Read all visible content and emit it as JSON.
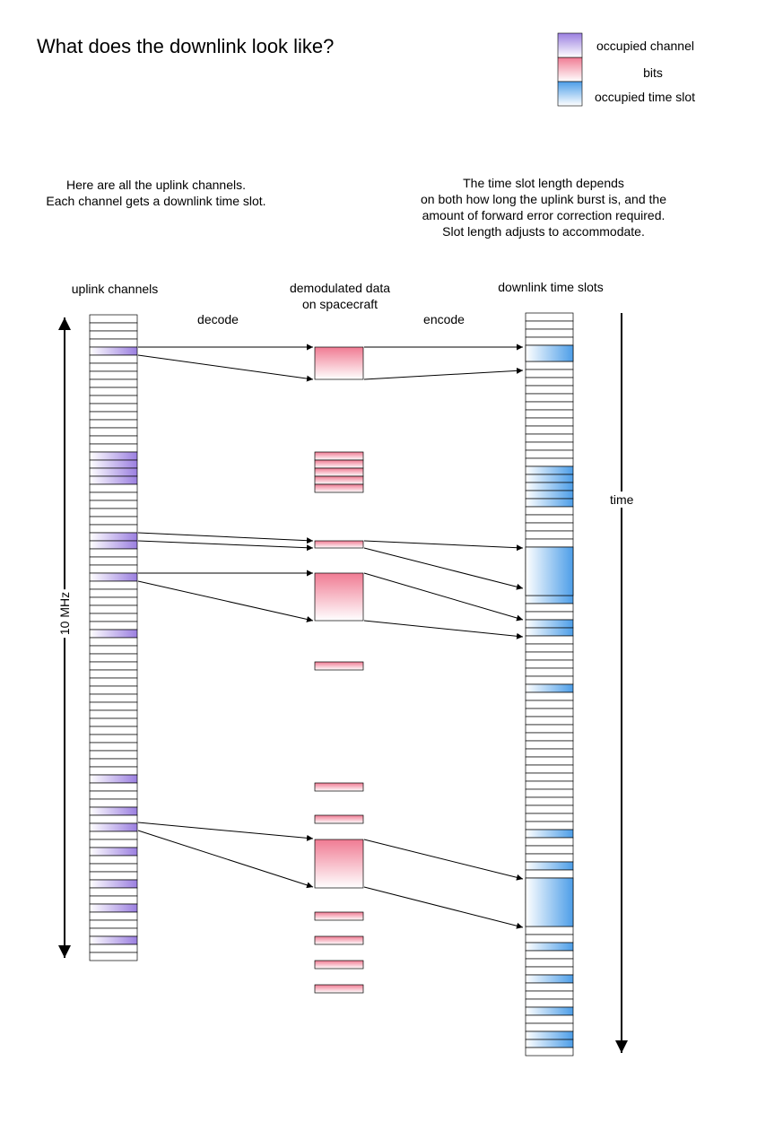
{
  "title": "What does the downlink look like?",
  "legend": {
    "items": [
      {
        "label": "occupied channel",
        "swatch": "purple"
      },
      {
        "label": "bits",
        "swatch": "pink"
      },
      {
        "label": "occupied time slot",
        "swatch": "blue"
      }
    ]
  },
  "notes": {
    "uplink": [
      "Here are all the uplink channels.",
      "Each channel gets a downlink time slot."
    ],
    "timeslot": [
      "The time slot length depends",
      "on both how long the uplink burst is, and the",
      "amount of forward error correction required.",
      "Slot length adjusts to accommodate."
    ]
  },
  "columns": {
    "uplink": "uplink channels",
    "demod": [
      "demodulated data",
      "on spacecraft"
    ],
    "downlink": "downlink time slots"
  },
  "labels": {
    "decode": "decode",
    "encode": "encode",
    "bandwidth": "10 MHz",
    "time": "time"
  },
  "colors": {
    "purple": "#9b7fe0",
    "pink": "#f07b93",
    "blue": "#4d9ee8",
    "border": "#000000"
  },
  "uplink_channels": {
    "count": 80,
    "occupied": [
      4,
      17,
      18,
      19,
      20,
      27,
      28,
      32,
      39,
      57,
      61,
      63,
      66,
      70,
      73,
      77
    ]
  },
  "downlink_slots": {
    "count": 92,
    "occupied": [
      4,
      5,
      19,
      20,
      21,
      22,
      23,
      29,
      30,
      31,
      32,
      33,
      34,
      35,
      38,
      39,
      46,
      64,
      68,
      70,
      71,
      72,
      73,
      74,
      75,
      78,
      82,
      86,
      89,
      90
    ]
  },
  "demod_blocks": [
    {
      "size": 4,
      "group": 1
    },
    {
      "size": 1,
      "group": 6
    },
    {
      "size": 1,
      "group": 1
    },
    {
      "size": 6,
      "group": 1
    },
    {
      "size": 1,
      "group": 1
    },
    {
      "size": 1,
      "group": 1
    },
    {
      "size": 1,
      "group": 1
    },
    {
      "size": 6,
      "group": 1
    },
    {
      "size": 1,
      "group": 1
    },
    {
      "size": 1,
      "group": 1
    },
    {
      "size": 1,
      "group": 1
    },
    {
      "size": 1,
      "group": 1
    }
  ]
}
